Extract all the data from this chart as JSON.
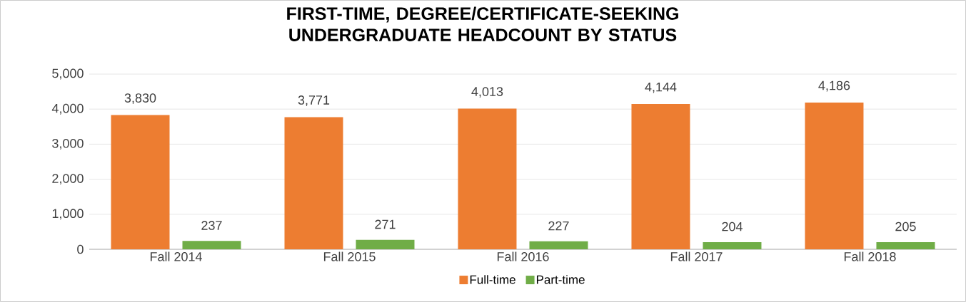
{
  "chart_data": {
    "type": "bar",
    "title": "FIRST-TIME, DEGREE/CERTIFICATE-SEEKING UNDERGRADUATE HEADCOUNT BY STATUS",
    "categories": [
      "Fall 2014",
      "Fall 2015",
      "Fall 2016",
      "Fall 2017",
      "Fall 2018"
    ],
    "series": [
      {
        "name": "Full-time",
        "color": "#ed7d31",
        "values": [
          3830,
          3771,
          4013,
          4144,
          4186
        ],
        "value_labels": [
          "3,830",
          "3,771",
          "4,013",
          "4,144",
          "4,186"
        ]
      },
      {
        "name": "Part-time",
        "color": "#70ad47",
        "values": [
          237,
          271,
          227,
          204,
          205
        ],
        "value_labels": [
          "237",
          "271",
          "227",
          "204",
          "205"
        ]
      }
    ],
    "ylim": [
      0,
      5000
    ],
    "yticks": [
      0,
      {
        "value": 1000,
        "label": "1,000"
      },
      {
        "value": 2000,
        "label": "2,000"
      },
      {
        "value": 3000,
        "label": "3,000"
      },
      {
        "value": 4000,
        "label": "4,000"
      },
      {
        "value": 5000,
        "label": "5,000"
      }
    ],
    "grid": "y",
    "legend": "bottom"
  }
}
